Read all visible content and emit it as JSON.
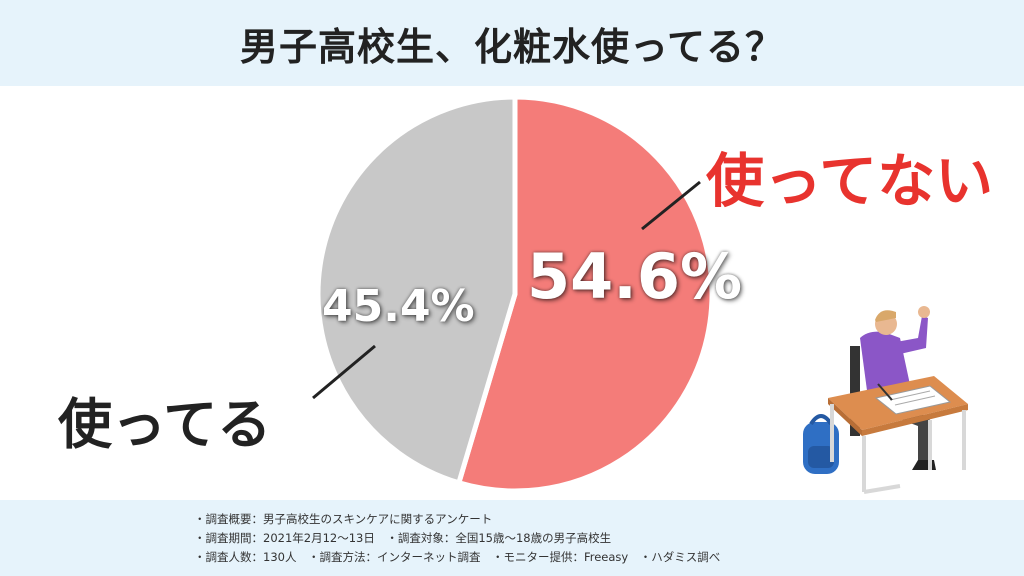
{
  "header": {
    "title": "男子高校生、化粧水使ってる？"
  },
  "chart_data": {
    "type": "pie",
    "slices": [
      {
        "label": "使ってない",
        "value": 54.6,
        "display": "54.6%",
        "color": "#f47c79"
      },
      {
        "label": "使ってる",
        "value": 45.4,
        "display": "45.4%",
        "color": "#c8c8c8"
      }
    ]
  },
  "footer": {
    "line1": "・調査概要：男子高校生のスキンケアに関するアンケート",
    "line2": "・調査期間：2021年2月12～13日　・調査対象：全国15歳～18歳の男子高校生",
    "line3": "・調査人数：130人　・調査方法：インターネット調査　・モニター提供：Freeasy　・ハダミス調べ"
  },
  "colors": {
    "header_bg": "#e6f3fb",
    "accent_red": "#e8332e",
    "slice_red": "#f47c79",
    "slice_gray": "#c8c8c8"
  }
}
